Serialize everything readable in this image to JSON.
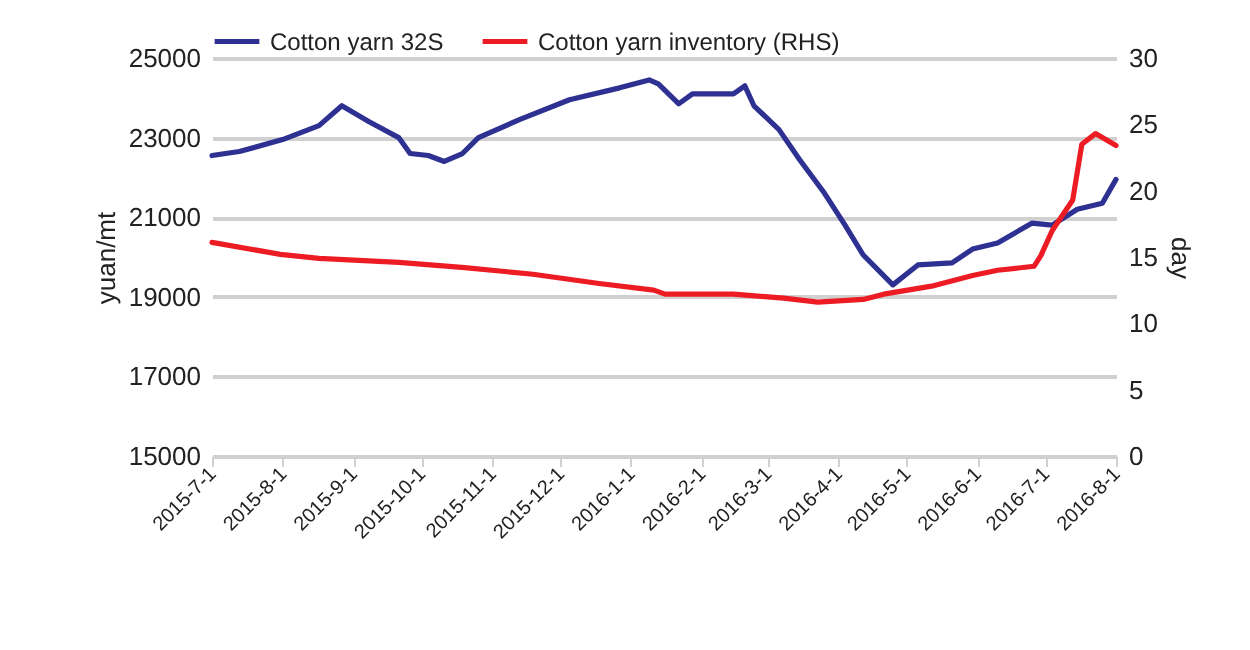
{
  "chart_data": {
    "type": "line",
    "ylabel": "yuan/mt",
    "y2label": "day",
    "legend": "top",
    "grid": "y",
    "line_style": "solid",
    "marker": "none",
    "xlim": [
      "2015-07-01",
      "2016-08-01"
    ],
    "xticks": [
      {
        "value": "2015-07-01",
        "label": "2015-7-1"
      },
      {
        "value": "2015-08-01",
        "label": "2015-8-1"
      },
      {
        "value": "2015-09-01",
        "label": "2015-9-1"
      },
      {
        "value": "2015-10-01",
        "label": "2015-10-1"
      },
      {
        "value": "2015-11-01",
        "label": "2015-11-1"
      },
      {
        "value": "2015-12-01",
        "label": "2015-12-1"
      },
      {
        "value": "2016-01-01",
        "label": "2016-1-1"
      },
      {
        "value": "2016-02-01",
        "label": "2016-2-1"
      },
      {
        "value": "2016-03-01",
        "label": "2016-3-1"
      },
      {
        "value": "2016-04-01",
        "label": "2016-4-1"
      },
      {
        "value": "2016-05-01",
        "label": "2016-5-1"
      },
      {
        "value": "2016-06-01",
        "label": "2016-6-1"
      },
      {
        "value": "2016-07-01",
        "label": "2016-7-1"
      },
      {
        "value": "2016-08-01",
        "label": "2016-8-1"
      }
    ],
    "ylim": [
      15000,
      25000
    ],
    "yticks": [
      15000,
      17000,
      19000,
      21000,
      23000,
      25000
    ],
    "y2lim": [
      0,
      30
    ],
    "y2ticks": [
      0,
      5,
      10,
      15,
      20,
      25,
      30
    ],
    "series": [
      {
        "name": "Cotton yarn 32S",
        "color": "#2e3192",
        "x": [
          "2015-07-01",
          "2015-07-13",
          "2015-08-01",
          "2015-08-17",
          "2015-08-27",
          "2015-09-08",
          "2015-09-21",
          "2015-09-26",
          "2015-10-04",
          "2015-10-11",
          "2015-10-19",
          "2015-10-26",
          "2015-11-13",
          "2015-12-05",
          "2015-12-27",
          "2016-01-09",
          "2016-01-13",
          "2016-01-22",
          "2016-01-28",
          "2016-02-15",
          "2016-02-20",
          "2016-02-24",
          "2016-03-06",
          "2016-03-15",
          "2016-03-26",
          "2016-04-04",
          "2016-04-12",
          "2016-04-25",
          "2016-05-06",
          "2016-05-21",
          "2016-05-30",
          "2016-06-10",
          "2016-06-25",
          "2016-07-04",
          "2016-07-15",
          "2016-07-26",
          "2016-08-01"
        ],
        "values": [
          22550,
          22650,
          22950,
          23300,
          23800,
          23400,
          23000,
          22600,
          22550,
          22400,
          22600,
          23000,
          23450,
          23950,
          24250,
          24450,
          24350,
          23850,
          24100,
          24100,
          24300,
          23800,
          23200,
          22450,
          21600,
          20800,
          20050,
          19300,
          19800,
          19850,
          20200,
          20350,
          20850,
          20800,
          21200,
          21350,
          21950
        ]
      },
      {
        "name": "Cotton yarn inventory (RHS)",
        "color": "#ed1c24",
        "axis": "y2",
        "x": [
          "2015-07-01",
          "2015-07-31",
          "2015-08-17",
          "2015-09-21",
          "2015-10-20",
          "2015-11-19",
          "2015-12-18",
          "2016-01-11",
          "2016-01-16",
          "2016-02-15",
          "2016-03-08",
          "2016-03-23",
          "2016-04-12",
          "2016-04-21",
          "2016-05-12",
          "2016-05-30",
          "2016-06-10",
          "2016-06-26",
          "2016-06-29",
          "2016-07-04",
          "2016-07-13",
          "2016-07-17",
          "2016-07-23",
          "2016-08-01"
        ],
        "values": [
          16.1,
          15.2,
          14.9,
          14.6,
          14.2,
          13.7,
          13.0,
          12.5,
          12.2,
          12.2,
          11.9,
          11.6,
          11.8,
          12.2,
          12.8,
          13.6,
          14.0,
          14.3,
          15.1,
          17.0,
          19.3,
          23.5,
          24.3,
          23.4
        ]
      }
    ]
  }
}
